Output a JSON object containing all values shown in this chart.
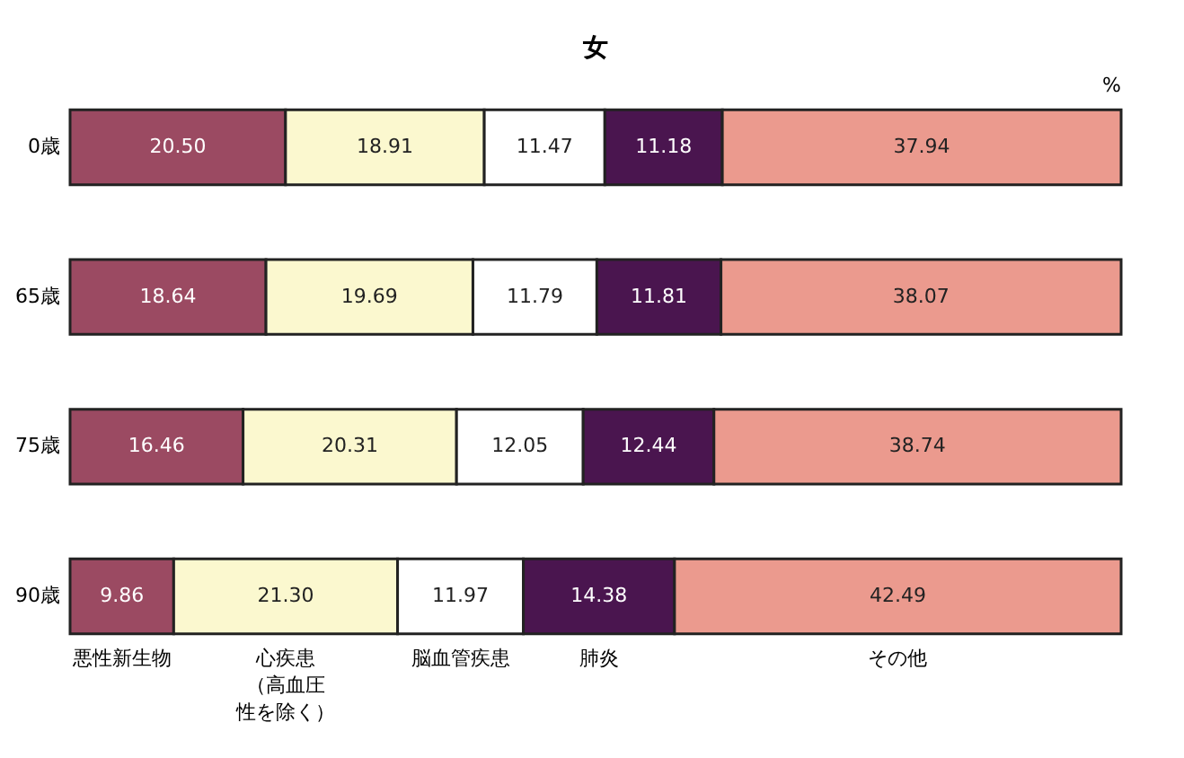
{
  "chart_data": {
    "type": "bar",
    "title": "女",
    "orientation": "horizontal",
    "stacked": true,
    "categories": [
      "0歳",
      "65歳",
      "75歳",
      "90歳"
    ],
    "series": [
      {
        "name": "悪性新生物",
        "color": "#9b4a62",
        "values": [
          20.5,
          18.64,
          16.46,
          9.86
        ],
        "value_labels": [
          "20.50",
          "18.64",
          "16.46",
          "9.86"
        ]
      },
      {
        "name": "心疾患（高血圧性を除く）",
        "color": "#fbf8cf",
        "values": [
          18.91,
          19.69,
          20.31,
          21.3
        ],
        "value_labels": [
          "18.91",
          "19.69",
          "20.31",
          "21.30"
        ]
      },
      {
        "name": "脳血管疾患",
        "color": "#ffffff",
        "values": [
          11.47,
          11.79,
          12.05,
          11.97
        ],
        "value_labels": [
          "11.47",
          "11.79",
          "12.05",
          "11.97"
        ]
      },
      {
        "name": "肺炎",
        "color": "#4a154f",
        "values": [
          11.18,
          11.81,
          12.44,
          14.38
        ],
        "value_labels": [
          "11.18",
          "11.81",
          "12.44",
          "14.38"
        ]
      },
      {
        "name": "その他",
        "color": "#eb9a8e",
        "values": [
          37.94,
          38.07,
          38.74,
          42.49
        ],
        "value_labels": [
          "37.94",
          "38.07",
          "38.74",
          "42.49"
        ]
      }
    ],
    "annotations": [
      "%"
    ]
  }
}
